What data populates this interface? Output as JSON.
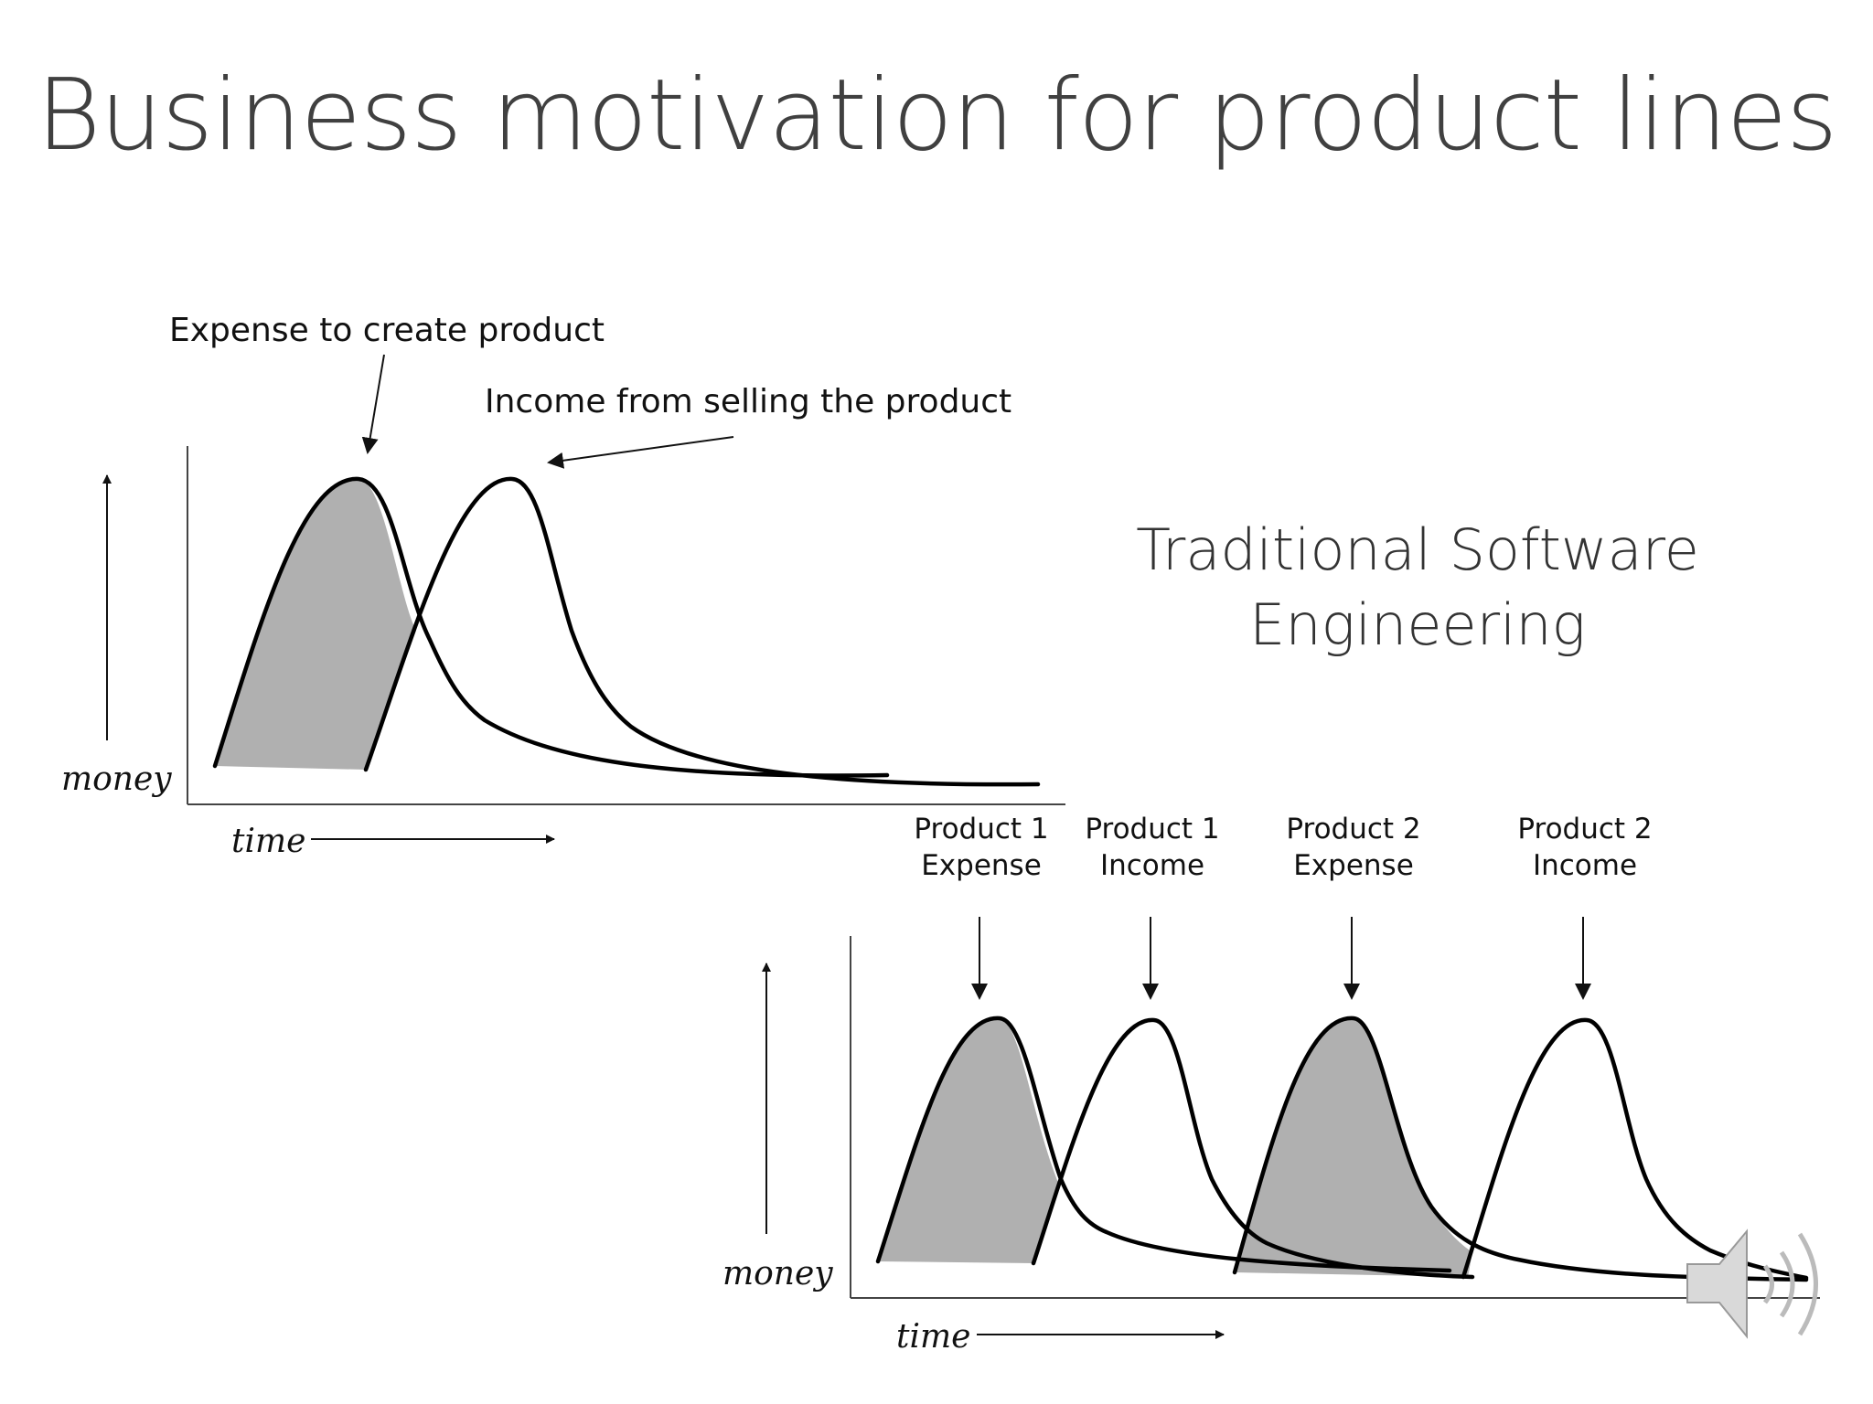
{
  "slide": {
    "title": "Business motivation for product lines",
    "subtitle_line1": "Traditional Software",
    "subtitle_line2": "Engineering"
  },
  "diagram_top": {
    "expense_annotation": "Expense to create product",
    "income_annotation": "Income from selling the product",
    "y_axis_label": "money",
    "x_axis_label": "time"
  },
  "diagram_bottom": {
    "labels": [
      {
        "line1": "Product 1",
        "line2": "Expense"
      },
      {
        "line1": "Product 1",
        "line2": "Income"
      },
      {
        "line1": "Product 2",
        "line2": "Expense"
      },
      {
        "line1": "Product 2",
        "line2": "Income"
      }
    ],
    "y_axis_label": "money",
    "x_axis_label": "time"
  },
  "colors": {
    "shade": "#b0b0b0",
    "title": "#404040",
    "speaker_icon": "#d9d9d9"
  },
  "icons": {
    "audio": "speaker-icon"
  }
}
